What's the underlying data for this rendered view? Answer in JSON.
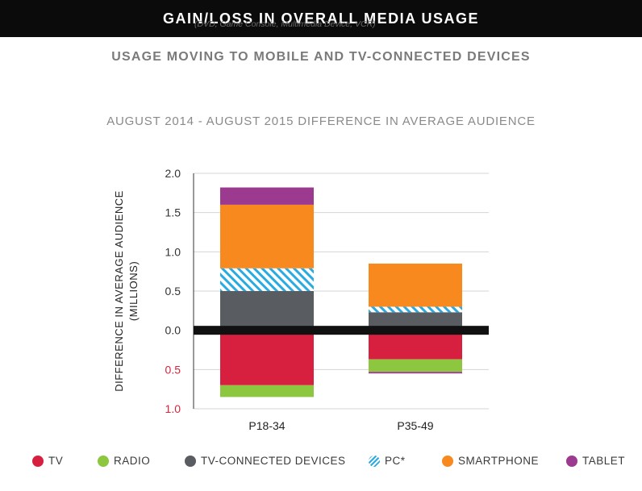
{
  "header": {
    "title": "GAIN/LOSS IN OVERALL MEDIA USAGE",
    "subtitle": "USAGE MOVING TO MOBILE AND TV-CONNECTED DEVICES"
  },
  "chart_data": {
    "type": "bar",
    "stacked": true,
    "title": "AUGUST 2014 - AUGUST 2015 DIFFERENCE IN AVERAGE AUDIENCE",
    "ylabel_line1": "DIFFERENCE IN AVERAGE AUDIENCE",
    "ylabel_line2": "(MILLIONS)",
    "ylim": [
      -1.0,
      2.0
    ],
    "yticks": [
      {
        "value": 2.0,
        "label": "2.0",
        "color": "#333333"
      },
      {
        "value": 1.5,
        "label": "1.5",
        "color": "#333333"
      },
      {
        "value": 1.0,
        "label": "1.0",
        "color": "#333333"
      },
      {
        "value": 0.5,
        "label": "0.5",
        "color": "#333333"
      },
      {
        "value": 0.0,
        "label": "0.0",
        "color": "#333333"
      },
      {
        "value": -0.5,
        "label": "0.5",
        "color": "#d7263d"
      },
      {
        "value": -1.0,
        "label": "1.0",
        "color": "#d7263d"
      }
    ],
    "categories": [
      "P18-34",
      "P35-49"
    ],
    "series": [
      {
        "name": "TV",
        "color": "#d7203f",
        "values": [
          -0.7,
          -0.37
        ]
      },
      {
        "name": "RADIO",
        "color": "#8dc63f",
        "values": [
          -0.15,
          -0.16
        ]
      },
      {
        "name": "TV-CONNECTED DEVICES",
        "color": "#595c61",
        "values": [
          0.5,
          0.23
        ]
      },
      {
        "name": "PC*",
        "color": "#29abe2",
        "pattern": "hatch",
        "values": [
          0.29,
          0.07
        ]
      },
      {
        "name": "SMARTPHONE",
        "color": "#f7891f",
        "values": [
          0.81,
          0.55
        ]
      },
      {
        "name": "TABLET",
        "color": "#9b3a8e",
        "values": [
          0.22,
          0.0
        ]
      }
    ],
    "extra_marks": [
      {
        "category": "P35-49",
        "value": -0.02,
        "color": "#9b3a8e"
      }
    ],
    "grid": true,
    "legend_position": "bottom",
    "legend_note": "(DVD, Game Console, Multimedia Device, VCR)"
  }
}
